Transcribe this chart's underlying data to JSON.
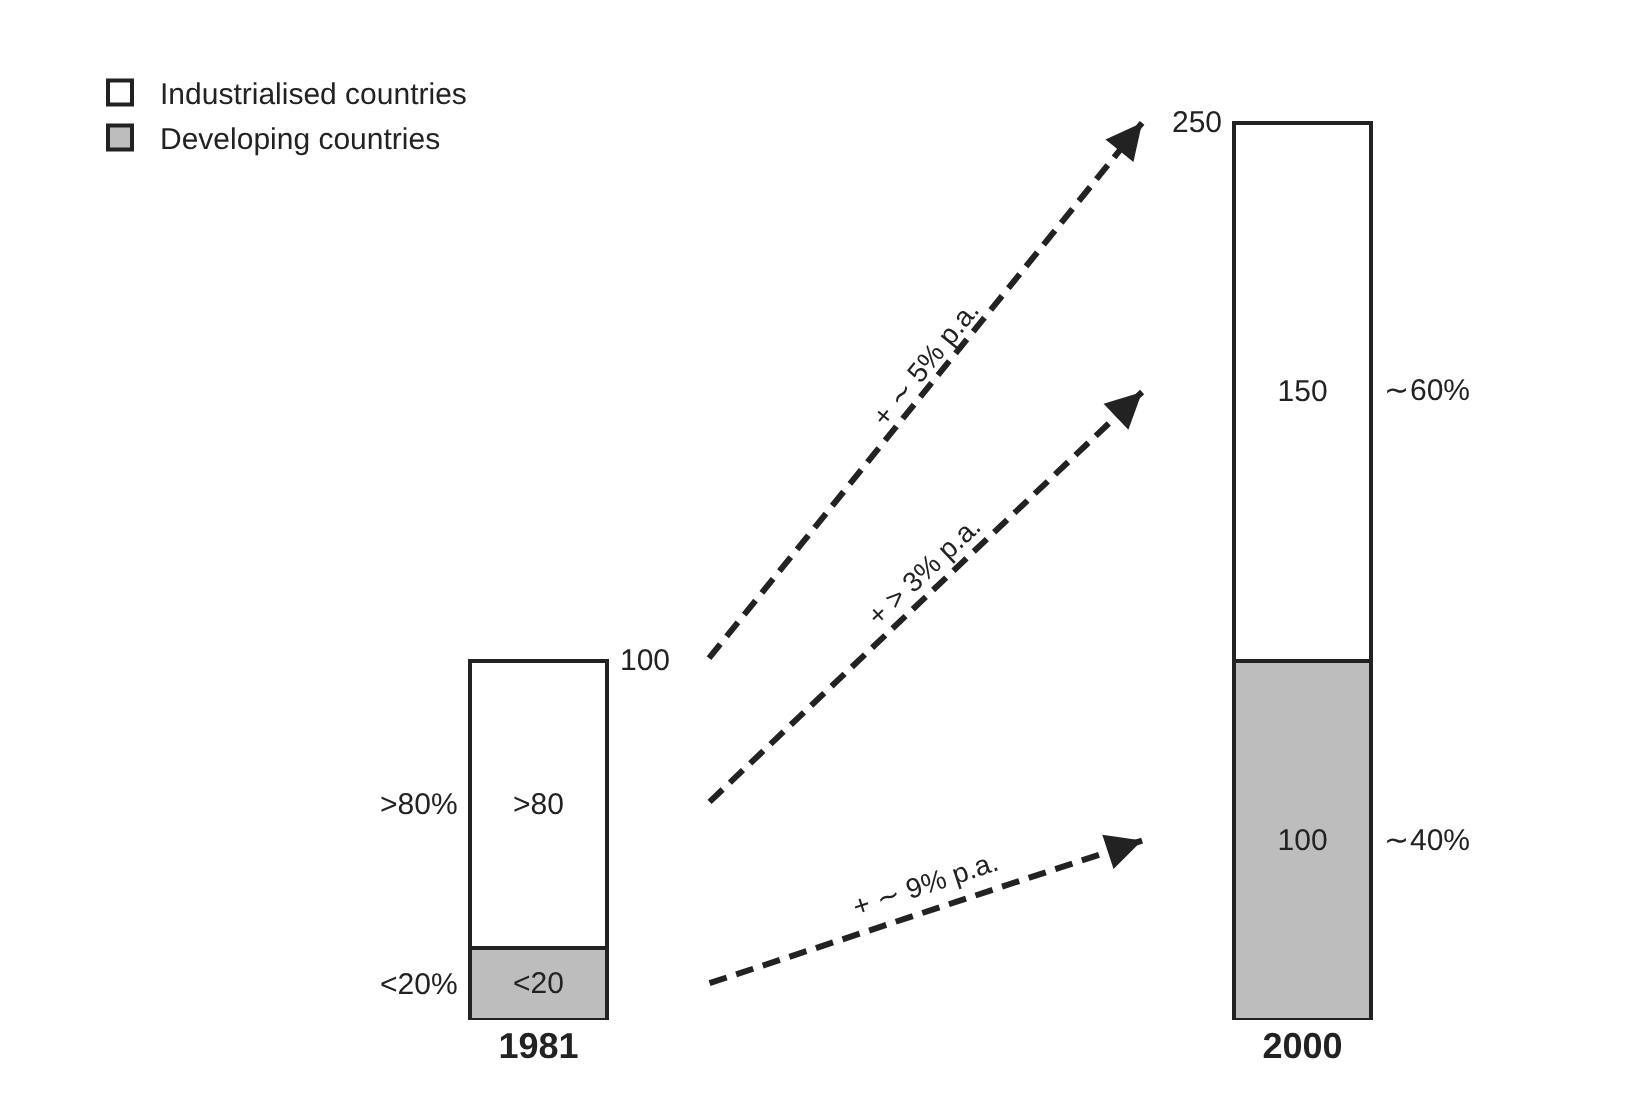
{
  "chart_data": {
    "type": "bar",
    "stacked": true,
    "categories": [
      "1981",
      "2000"
    ],
    "series": [
      {
        "name": "Developing countries",
        "color": "#bdbdbd",
        "values": [
          20,
          100
        ],
        "value_labels": [
          "<20",
          "100"
        ]
      },
      {
        "name": "Industrialised countries",
        "color": "#ffffff",
        "values": [
          80,
          150
        ],
        "value_labels": [
          ">80",
          "150"
        ]
      }
    ],
    "totals": [
      "100",
      "250"
    ],
    "legend": "top left",
    "annotations": [
      "+ ∼ 5% p.a.",
      "+ > 3% p.a.",
      "+ ∼ 9% p.a.",
      ">80%",
      "<20%",
      "∼60%",
      "∼40%"
    ]
  }
}
